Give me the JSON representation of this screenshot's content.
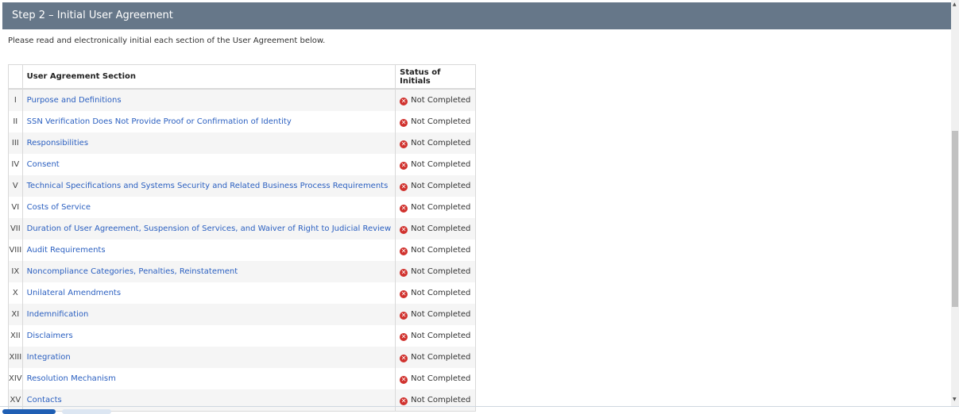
{
  "header": {
    "title": "Step 2 – Initial User Agreement"
  },
  "intro": "Please read and electronically initial each section of the User Agreement below.",
  "table": {
    "headers": [
      "",
      "User Agreement Section",
      "Status of Initials"
    ],
    "rows": [
      {
        "num": "I",
        "section": "Purpose and Definitions",
        "status": "Not Completed"
      },
      {
        "num": "II",
        "section": "SSN Verification Does Not Provide Proof or Confirmation of Identity",
        "status": "Not Completed"
      },
      {
        "num": "III",
        "section": "Responsibilities",
        "status": "Not Completed"
      },
      {
        "num": "IV",
        "section": "Consent",
        "status": "Not Completed"
      },
      {
        "num": "V",
        "section": "Technical Specifications and Systems Security and Related Business Process Requirements",
        "status": "Not Completed"
      },
      {
        "num": "VI",
        "section": "Costs of Service",
        "status": "Not Completed"
      },
      {
        "num": "VII",
        "section": "Duration of User Agreement, Suspension of Services, and Waiver of Right to Judicial Review",
        "status": "Not Completed"
      },
      {
        "num": "VIII",
        "section": "Audit Requirements",
        "status": "Not Completed"
      },
      {
        "num": "IX",
        "section": "Noncompliance Categories, Penalties, Reinstatement",
        "status": "Not Completed"
      },
      {
        "num": "X",
        "section": "Unilateral Amendments",
        "status": "Not Completed"
      },
      {
        "num": "XI",
        "section": "Indemnification",
        "status": "Not Completed"
      },
      {
        "num": "XII",
        "section": "Disclaimers",
        "status": "Not Completed"
      },
      {
        "num": "XIII",
        "section": "Integration",
        "status": "Not Completed"
      },
      {
        "num": "XIV",
        "section": "Resolution Mechanism",
        "status": "Not Completed"
      },
      {
        "num": "XV",
        "section": "Contacts",
        "status": "Not Completed"
      }
    ]
  },
  "status_icon": "x-circle-icon",
  "colors": {
    "header_bg": "#667789",
    "link": "#2a5fc0",
    "error": "#d0312d"
  }
}
